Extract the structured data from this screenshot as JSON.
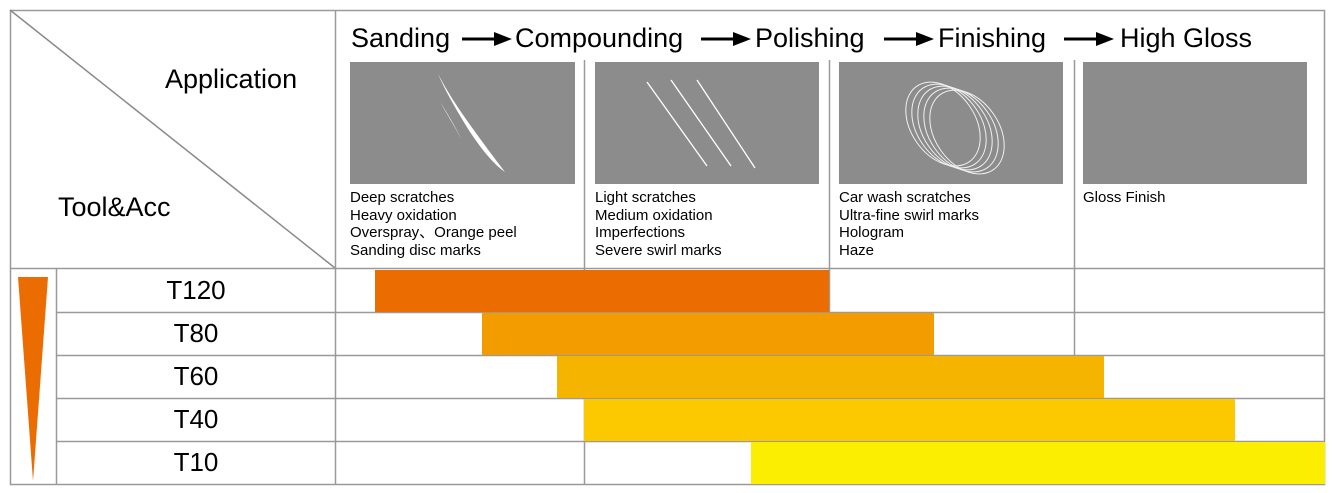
{
  "header": {
    "application_label": "Application",
    "tool_label": "Tool&Acc",
    "steps": [
      "Sanding",
      "Compounding",
      "Polishing",
      "Finishing",
      "High Gloss"
    ]
  },
  "columns": [
    {
      "scratch_icon": "deep-scratch-icon",
      "descriptions": [
        "Deep scratches",
        "Heavy oxidation",
        "Overspray、Orange peel",
        "Sanding disc marks"
      ]
    },
    {
      "scratch_icon": "light-scratch-icon",
      "descriptions": [
        "Light scratches",
        "Medium oxidation",
        "Imperfections",
        "Severe swirl marks"
      ]
    },
    {
      "scratch_icon": "swirl-marks-icon",
      "descriptions": [
        "Car wash scratches",
        "Ultra-fine swirl marks",
        "Hologram",
        "Haze"
      ]
    },
    {
      "scratch_icon": "",
      "descriptions": [
        "Gloss Finish"
      ]
    }
  ],
  "chart_data": {
    "type": "bar",
    "orientation": "horizontal",
    "categories": [
      "T120",
      "T80",
      "T60",
      "T40",
      "T10"
    ],
    "x_axis": {
      "stages": [
        "Sanding",
        "Compounding",
        "Polishing",
        "Finishing",
        "High Gloss"
      ],
      "range": [
        0,
        4
      ]
    },
    "series": [
      {
        "values": [
          [
            0.16,
            2.0
          ],
          [
            0.59,
            2.43
          ],
          [
            0.89,
            3.12
          ],
          [
            1.0,
            3.64
          ],
          [
            1.68,
            4.0
          ]
        ]
      }
    ],
    "colors": [
      "#eb6c00",
      "#f29c00",
      "#f5b400",
      "#fcc900",
      "#fcee00"
    ],
    "grid": true,
    "legend": "none"
  }
}
